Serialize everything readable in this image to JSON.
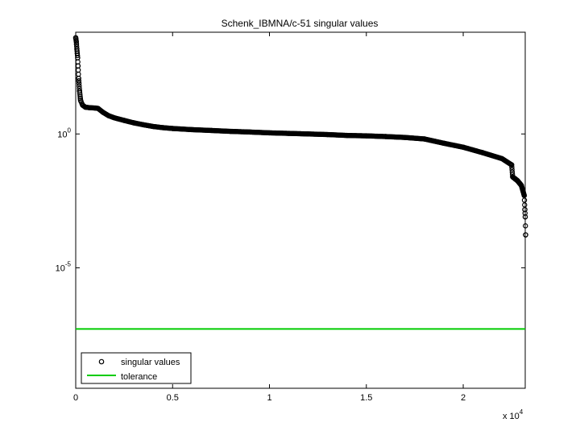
{
  "chart_data": {
    "type": "scatter",
    "title": "Schenk_IBMNA/c-51 singular values",
    "xlabel": "",
    "ylabel": "",
    "x_multiplier_label": "x 10",
    "x_multiplier_exponent": "4",
    "xlim": [
      0,
      23200
    ],
    "ylim_log10": [
      -9.5,
      3.8
    ],
    "y_scale": "log",
    "grid": false,
    "legend_position": "bottom-left",
    "x_ticks": [
      {
        "value": 0,
        "label": "0"
      },
      {
        "value": 5000,
        "label": "0.5"
      },
      {
        "value": 10000,
        "label": "1"
      },
      {
        "value": 15000,
        "label": "1.5"
      },
      {
        "value": 20000,
        "label": "2"
      }
    ],
    "y_ticks": [
      {
        "value": 1,
        "base": "10",
        "exp": "0"
      },
      {
        "value": 1e-05,
        "base": "10",
        "exp": "-5"
      }
    ],
    "series": [
      {
        "name": "singular values",
        "marker": "circle",
        "color": "#000000",
        "points": [
          [
            0,
            3900
          ],
          [
            30,
            2800
          ],
          [
            60,
            1500
          ],
          [
            100,
            700
          ],
          [
            150,
            120
          ],
          [
            200,
            40
          ],
          [
            250,
            18
          ],
          [
            350,
            12
          ],
          [
            500,
            10
          ],
          [
            700,
            9.6
          ],
          [
            1000,
            9.3
          ],
          [
            1150,
            9.0
          ],
          [
            1400,
            6.5
          ],
          [
            1700,
            4.8
          ],
          [
            2000,
            4.0
          ],
          [
            2500,
            3.2
          ],
          [
            3000,
            2.6
          ],
          [
            3500,
            2.2
          ],
          [
            4000,
            1.9
          ],
          [
            4500,
            1.72
          ],
          [
            5000,
            1.6
          ],
          [
            6000,
            1.45
          ],
          [
            7000,
            1.35
          ],
          [
            8000,
            1.25
          ],
          [
            9000,
            1.18
          ],
          [
            10000,
            1.1
          ],
          [
            11000,
            1.05
          ],
          [
            12000,
            1.0
          ],
          [
            13000,
            0.95
          ],
          [
            14000,
            0.88
          ],
          [
            15000,
            0.85
          ],
          [
            16000,
            0.8
          ],
          [
            17000,
            0.74
          ],
          [
            18000,
            0.65
          ],
          [
            19000,
            0.45
          ],
          [
            20000,
            0.32
          ],
          [
            21000,
            0.2
          ],
          [
            22000,
            0.12
          ],
          [
            22500,
            0.07
          ],
          [
            22550,
            0.025
          ],
          [
            22800,
            0.018
          ],
          [
            23000,
            0.012
          ],
          [
            23150,
            0.005
          ],
          [
            23180,
            0.0015
          ],
          [
            23200,
            0.0008
          ],
          [
            23220,
            0.00017
          ]
        ]
      },
      {
        "name": "tolerance",
        "marker": "line",
        "color": "#00cc00",
        "y": 5.2e-08
      }
    ]
  }
}
